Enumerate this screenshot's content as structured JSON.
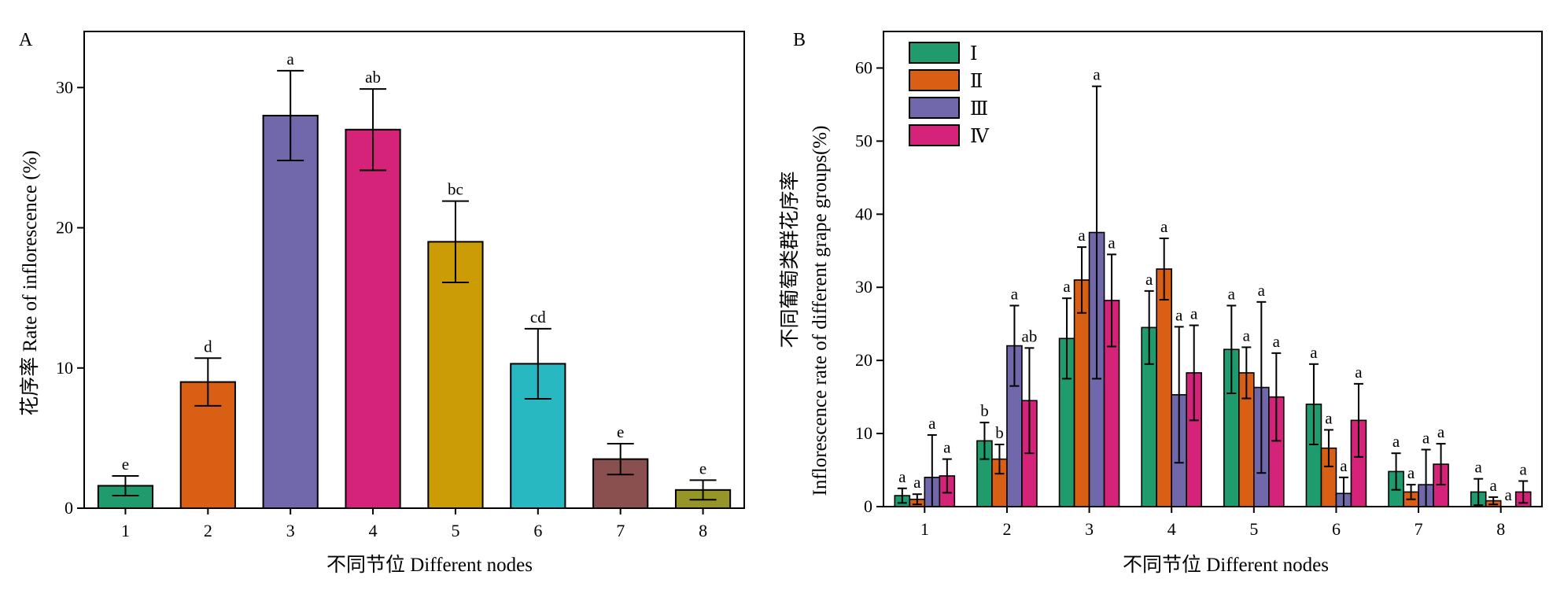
{
  "chart_data": [
    {
      "type": "bar",
      "panel_label": "A",
      "title": "",
      "xlabel": "不同节位 Different nodes",
      "ylabel": "花序率 Rate of inflorescence (%)",
      "categories": [
        "1",
        "2",
        "3",
        "4",
        "5",
        "6",
        "7",
        "8"
      ],
      "values": [
        1.6,
        9.0,
        28.0,
        27.0,
        19.0,
        10.3,
        3.5,
        1.3
      ],
      "errors": [
        0.7,
        1.7,
        3.2,
        2.9,
        2.9,
        2.5,
        1.1,
        0.7
      ],
      "significance": [
        "e",
        "d",
        "a",
        "ab",
        "bc",
        "cd",
        "e",
        "e"
      ],
      "colors": [
        "#1f9b6e",
        "#d95f14",
        "#7068ab",
        "#d6237a",
        "#cc9c06",
        "#28b8c2",
        "#8a5050",
        "#96952a"
      ],
      "ylim": [
        0,
        34
      ],
      "yticks": [
        0,
        10,
        20,
        30
      ],
      "grid": false
    },
    {
      "type": "bar",
      "panel_label": "B",
      "title": "",
      "xlabel": "不同节位 Different nodes",
      "ylabel": "Inflorescence rate of different grape groups(%)",
      "ylabel_cn": "不同葡萄类群花序率",
      "categories": [
        "1",
        "2",
        "3",
        "4",
        "5",
        "6",
        "7",
        "8"
      ],
      "series": [
        {
          "name": "Ⅰ",
          "color": "#1f9b6e",
          "values": [
            1.5,
            9.0,
            23.0,
            24.5,
            21.5,
            14.0,
            4.8,
            2.0
          ],
          "errors": [
            1.0,
            2.5,
            5.5,
            5.0,
            6.0,
            5.5,
            2.5,
            1.8
          ],
          "significance": [
            "a",
            "b",
            "a",
            "a",
            "a",
            "a",
            "a",
            "a"
          ]
        },
        {
          "name": "Ⅱ",
          "color": "#d95f14",
          "values": [
            1.0,
            6.5,
            31.0,
            32.5,
            18.3,
            8.0,
            2.0,
            0.8
          ],
          "errors": [
            0.7,
            2.0,
            4.5,
            4.2,
            3.5,
            2.5,
            1.0,
            0.5
          ],
          "significance": [
            "a",
            "b",
            "a",
            "a",
            "a",
            "a",
            "a",
            "a"
          ]
        },
        {
          "name": "Ⅲ",
          "color": "#7068ab",
          "values": [
            4.0,
            22.0,
            37.5,
            15.3,
            16.3,
            1.8,
            3.0,
            0.0
          ],
          "errors": [
            5.8,
            5.5,
            20.0,
            9.3,
            11.7,
            2.2,
            4.8,
            0.0
          ],
          "significance": [
            "a",
            "a",
            "a",
            "a",
            "a",
            "a",
            "a",
            "a"
          ]
        },
        {
          "name": "Ⅳ",
          "color": "#d6237a",
          "values": [
            4.2,
            14.5,
            28.2,
            18.3,
            15.0,
            11.8,
            5.8,
            2.0
          ],
          "errors": [
            2.3,
            7.2,
            6.3,
            6.5,
            6.0,
            5.0,
            2.8,
            1.5
          ],
          "significance": [
            "a",
            "ab",
            "a",
            "a",
            "a",
            "a",
            "a",
            "a"
          ]
        }
      ],
      "ylim": [
        0,
        65
      ],
      "yticks": [
        0,
        10,
        20,
        30,
        40,
        50,
        60
      ],
      "legend_position": "top-left",
      "grid": false
    }
  ]
}
